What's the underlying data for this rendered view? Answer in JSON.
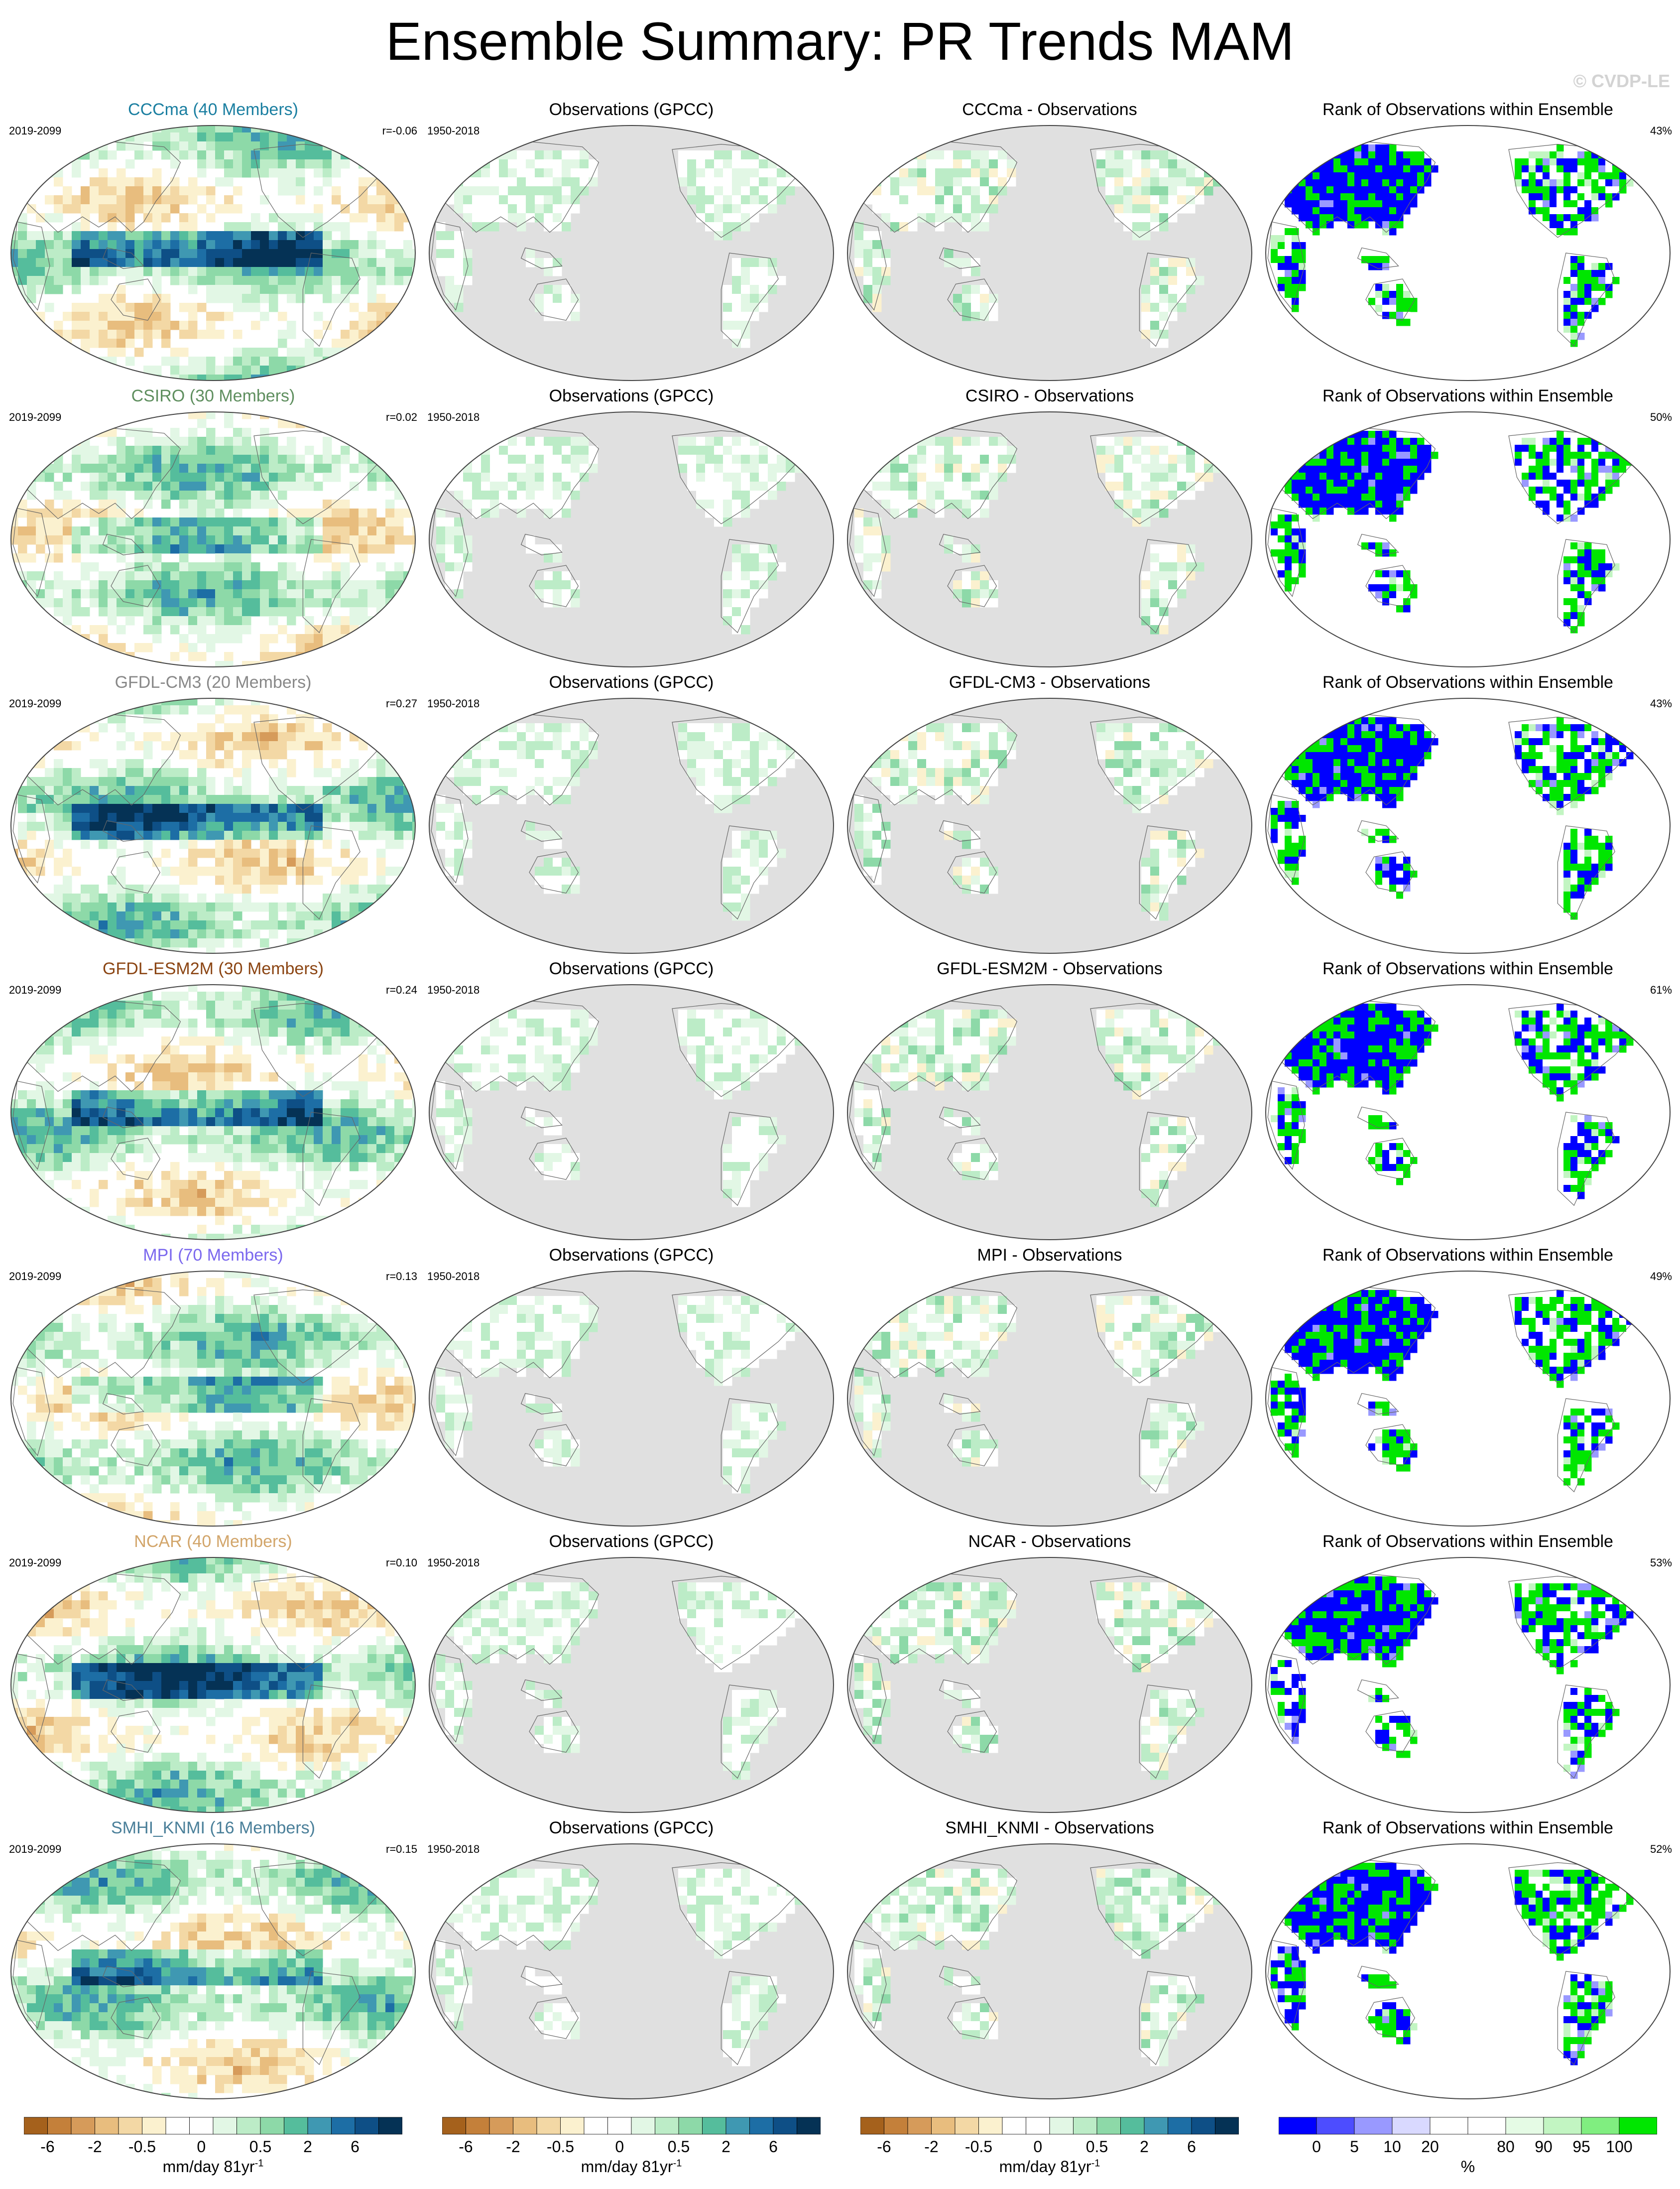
{
  "title": "Ensemble Summary: PR Trends MAM",
  "credit": "© CVDP-LE",
  "column_titles": {
    "observations": "Observations (GPCC)",
    "rank": "Rank of Observations within Ensemble"
  },
  "periods": {
    "model": "2019-2099",
    "obs": "1950-2018"
  },
  "rows": [
    {
      "model": "CCCma (40 Members)",
      "model_color": "#1b7fa1",
      "r": "r=-0.06",
      "diff_title": "CCCma - Observations",
      "rank_pct": "43%"
    },
    {
      "model": "CSIRO (30 Members)",
      "model_color": "#5f8f5f",
      "r": "r=0.02",
      "diff_title": "CSIRO - Observations",
      "rank_pct": "50%"
    },
    {
      "model": "GFDL-CM3 (20 Members)",
      "model_color": "#888888",
      "r": "r=0.27",
      "diff_title": "GFDL-CM3 - Observations",
      "rank_pct": "43%"
    },
    {
      "model": "GFDL-ESM2M (30 Members)",
      "model_color": "#8b4513",
      "r": "r=0.24",
      "diff_title": "GFDL-ESM2M - Observations",
      "rank_pct": "61%"
    },
    {
      "model": "MPI (70 Members)",
      "model_color": "#7b68ee",
      "r": "r=0.13",
      "diff_title": "MPI - Observations",
      "rank_pct": "49%"
    },
    {
      "model": "NCAR (40 Members)",
      "model_color": "#d2a56a",
      "r": "r=0.10",
      "diff_title": "NCAR - Observations",
      "rank_pct": "53%"
    },
    {
      "model": "SMHI_KNMI (16 Members)",
      "model_color": "#4a7f99",
      "r": "r=0.15",
      "diff_title": "SMHI_KNMI - Observations",
      "rank_pct": "52%"
    }
  ],
  "colorbar_trend": {
    "label": "mm/day 81yr",
    "label_exponent": "-1",
    "ticks": [
      "-6",
      "-2",
      "-0.5",
      "0",
      "0.5",
      "2",
      "6"
    ],
    "colors": [
      "#a5611c",
      "#c4803a",
      "#d69b5a",
      "#e8bd7e",
      "#f3d8a5",
      "#fbf1cf",
      "#ffffff",
      "#ffffff",
      "#e2f7e5",
      "#bcecc7",
      "#8dd9a8",
      "#55bd9c",
      "#3f98b2",
      "#1d6ea5",
      "#0e4f86",
      "#053255"
    ]
  },
  "colorbar_rank": {
    "label": "%",
    "ticks": [
      "0",
      "5",
      "10",
      "20",
      "80",
      "90",
      "95",
      "100"
    ],
    "colors": [
      "#0000ff",
      "#4d4dff",
      "#9999ff",
      "#d9d9ff",
      "#ffffff",
      "#ffffff",
      "#e5fbe5",
      "#c2f5c2",
      "#80ee80",
      "#00e600"
    ]
  }
}
